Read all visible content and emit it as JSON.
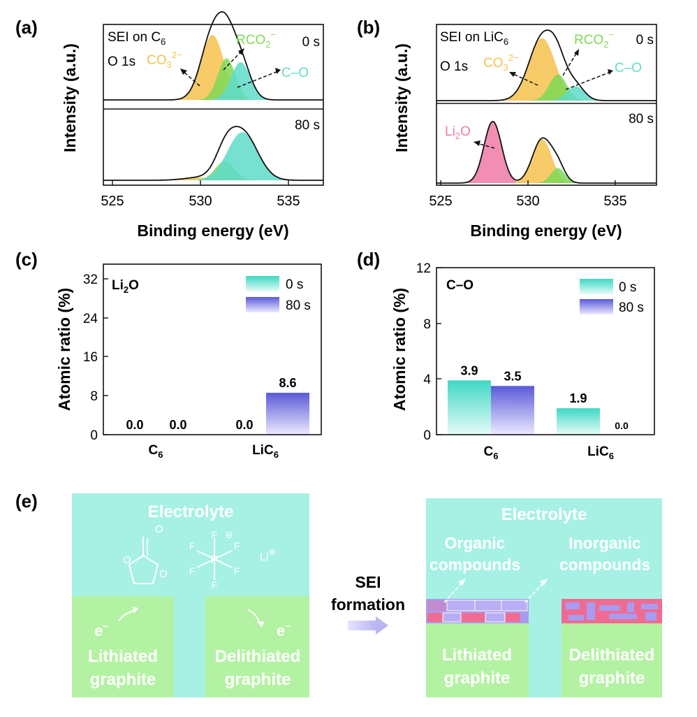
{
  "panels": {
    "a": {
      "tag": "(a)",
      "top_sample": "SEI on C",
      "top_sub": "6",
      "orbital": "O 1s",
      "time_top": "0 s",
      "time_bottom": "80 s"
    },
    "b": {
      "tag": "(b)",
      "top_sample": "SEI on LiC",
      "top_sub": "6",
      "orbital": "O 1s",
      "time_top": "0 s",
      "time_bottom": "80 s"
    },
    "c": {
      "tag": "(c)",
      "label_main": "Li",
      "label_sub": "2",
      "label_tail": "O"
    },
    "d": {
      "tag": "(d)",
      "label": "C–O"
    },
    "e": {
      "tag": "(e)"
    }
  },
  "species": {
    "co3": "CO",
    "co3_sub": "3",
    "co3_sup": "2−",
    "rco2": "RCO",
    "rco2_sub": "2",
    "rco2_sup": "−",
    "co": "C–O",
    "li2o": "Li",
    "li2o_sub": "2",
    "li2o_tail": "O"
  },
  "axes": {
    "xps_ylabel": "Intensity (a.u.)",
    "xps_xlabel": "Binding energy (eV)",
    "bar_ylabel": "Atomic ratio (%)"
  },
  "colors": {
    "co3": "#f4c24e",
    "rco2": "#7ed957",
    "co": "#5fdcc9",
    "li2o": "#f07aa6",
    "bar0": "#3fd8c4",
    "bar80": "#5a5ad8",
    "electrolyte": "#a6f1e4",
    "graphite": "#b4f2a3",
    "sei_pink": "#f06b92",
    "sei_purple": "#a99cf0"
  },
  "chart_data": [
    {
      "id": "a-top",
      "type": "line",
      "title": "SEI on C6 — O 1s, 0 s",
      "xlabel": "Binding energy (eV)",
      "ylabel": "Intensity (a.u.)",
      "xlim": [
        525,
        537.5
      ],
      "xticks": [
        525,
        530,
        535
      ],
      "series": [
        {
          "name": "CO3 2-",
          "color": "#f4c24e",
          "peaks": [
            {
              "center": 531.2,
              "width": 0.65,
              "height": 0.86
            }
          ]
        },
        {
          "name": "RCO2 -",
          "color": "#7ed957",
          "peaks": [
            {
              "center": 532.0,
              "width": 0.5,
              "height": 0.55
            }
          ]
        },
        {
          "name": "C-O",
          "color": "#5fdcc9",
          "peaks": [
            {
              "center": 532.8,
              "width": 0.55,
              "height": 0.5
            }
          ]
        }
      ]
    },
    {
      "id": "a-bottom",
      "type": "line",
      "title": "SEI on C6 — O 1s, 80 s",
      "xlim": [
        525,
        537.5
      ],
      "xticks": [
        525,
        530,
        535
      ],
      "series": [
        {
          "name": "CO3 2-",
          "color": "#f4c24e",
          "peaks": [
            {
              "center": 530.5,
              "width": 0.9,
              "height": 0.05
            }
          ]
        },
        {
          "name": "RCO2 -",
          "color": "#7ed957",
          "peaks": [
            {
              "center": 531.9,
              "width": 0.55,
              "height": 0.34
            }
          ]
        },
        {
          "name": "C-O",
          "color": "#5fdcc9",
          "peaks": [
            {
              "center": 532.9,
              "width": 0.85,
              "height": 0.86
            }
          ]
        }
      ]
    },
    {
      "id": "b-top",
      "type": "line",
      "title": "SEI on LiC6 — O 1s, 0 s",
      "xlim": [
        525,
        537.5
      ],
      "xticks": [
        525,
        530,
        535
      ],
      "series": [
        {
          "name": "CO3 2-",
          "color": "#f4c24e",
          "peaks": [
            {
              "center": 531.0,
              "width": 0.75,
              "height": 0.86
            }
          ]
        },
        {
          "name": "RCO2 -",
          "color": "#7ed957",
          "peaks": [
            {
              "center": 531.9,
              "width": 0.5,
              "height": 0.36
            }
          ]
        },
        {
          "name": "C-O",
          "color": "#5fdcc9",
          "peaks": [
            {
              "center": 532.9,
              "width": 0.5,
              "height": 0.2
            }
          ]
        }
      ]
    },
    {
      "id": "b-bottom",
      "type": "line",
      "title": "SEI on LiC6 — O 1s, 80 s",
      "xlim": [
        525,
        537.5
      ],
      "xticks": [
        525,
        530,
        535
      ],
      "series": [
        {
          "name": "Li2O",
          "color": "#f07aa6",
          "peaks": [
            {
              "center": 528.2,
              "width": 0.5,
              "height": 0.9
            }
          ]
        },
        {
          "name": "CO3 2-",
          "color": "#f4c24e",
          "peaks": [
            {
              "center": 531.0,
              "width": 0.55,
              "height": 0.64
            }
          ]
        },
        {
          "name": "RCO2 -",
          "color": "#7ed957",
          "peaks": [
            {
              "center": 531.9,
              "width": 0.4,
              "height": 0.22
            }
          ]
        }
      ]
    },
    {
      "id": "c",
      "type": "bar",
      "title": "Li2O",
      "categories": [
        "C",
        "LiC"
      ],
      "category_sub": "6",
      "series": [
        {
          "name": "0 s",
          "values": [
            0.0,
            0.0
          ]
        },
        {
          "name": "80 s",
          "values": [
            0.0,
            8.6
          ]
        }
      ],
      "value_labels": [
        [
          "0.0",
          "0.0"
        ],
        [
          "0.0",
          "8.6"
        ]
      ],
      "ylabel": "Atomic ratio (%)",
      "ylim": [
        0,
        36
      ],
      "yticks": [
        0,
        8,
        16,
        24,
        32
      ]
    },
    {
      "id": "d",
      "type": "bar",
      "title": "C–O",
      "categories": [
        "C",
        "LiC"
      ],
      "category_sub": "6",
      "series": [
        {
          "name": "0 s",
          "values": [
            3.9,
            1.9
          ]
        },
        {
          "name": "80 s",
          "values": [
            3.5,
            0.0
          ]
        }
      ],
      "value_labels": [
        [
          "3.9",
          "1.9"
        ],
        [
          "3.5",
          "0.0"
        ]
      ],
      "ylabel": "Atomic ratio (%)",
      "ylim": [
        0,
        12
      ],
      "yticks": [
        0,
        4,
        8,
        12
      ]
    }
  ],
  "schematic": {
    "electrolyte": "Electrolyte",
    "electron": "e",
    "electron_sup": "−",
    "lithiated_1": "Lithiated",
    "lithiated_2": "graphite",
    "delithiated_1": "Delithiated",
    "delithiated_2": "graphite",
    "sei_1": "SEI",
    "sei_2": "formation",
    "organic_1": "Organic",
    "organic_2": "compounds",
    "inorganic_1": "Inorganic",
    "inorganic_2": "compounds",
    "ec_o": "O",
    "pf6_p": "P",
    "pf6_f": "F",
    "minus_circle": "⊖",
    "li": "Li",
    "plus_circle": "⊕"
  }
}
